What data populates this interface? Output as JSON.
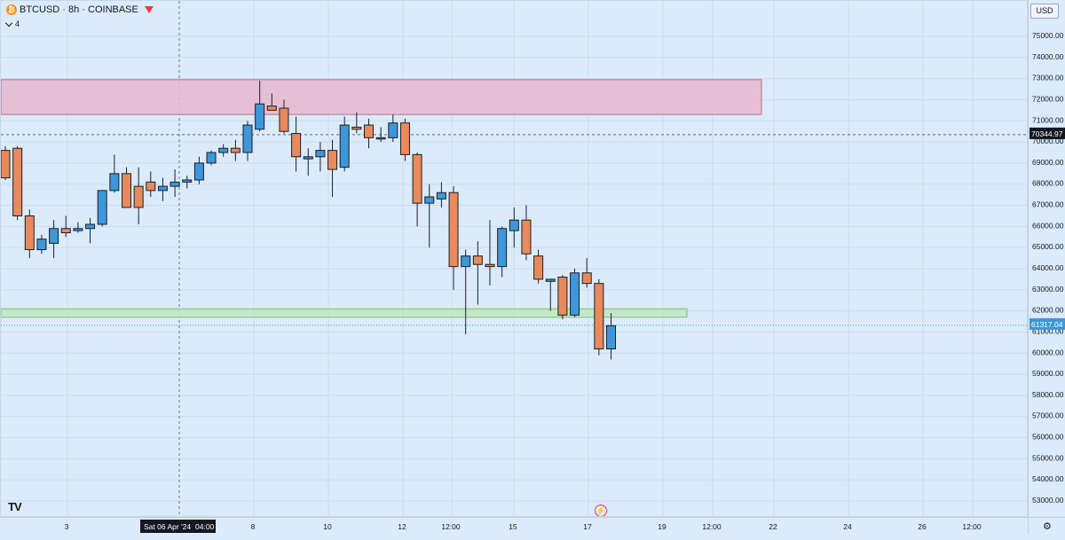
{
  "legend": {
    "title": "BTCUSD · 8h · COINBASE",
    "sub_count": "4"
  },
  "currency": "USD",
  "colors": {
    "up": "#3d97d8",
    "down": "#e98a5c",
    "wick": "#1b1e28",
    "resistance_zone": "#e8b7cc",
    "support_zone": "#bfe7bf",
    "grid": "#c9dbef"
  },
  "chart_data": {
    "type": "candlestick",
    "symbol": "BTCUSD",
    "interval": "8h",
    "exchange": "COINBASE",
    "ylim": [
      52500,
      75500
    ],
    "y_ticks": [
      "75000.00",
      "74000.00",
      "73000.00",
      "72000.00",
      "71000.00",
      "70000.00",
      "69000.00",
      "68000.00",
      "67000.00",
      "66000.00",
      "65000.00",
      "64000.00",
      "63000.00",
      "62000.00",
      "61000.00",
      "60000.00",
      "59000.00",
      "58000.00",
      "57000.00",
      "56000.00",
      "55000.00",
      "54000.00",
      "53000.00"
    ],
    "x_ticks": [
      "3",
      "Sat 06 Apr '24",
      "04:00",
      "8",
      "10",
      "12",
      "12:00",
      "15",
      "17",
      "19",
      "12:00",
      "22",
      "24",
      "26",
      "12:00"
    ],
    "price_labels": {
      "last_price": "70344.97",
      "current_price": "61317.04"
    },
    "candles": [
      [
        69600,
        69800,
        68200,
        68300
      ],
      [
        69700,
        69800,
        66300,
        66500
      ],
      [
        66500,
        66800,
        64500,
        64900
      ],
      [
        64900,
        65600,
        64700,
        65400
      ],
      [
        65200,
        66300,
        64500,
        65900
      ],
      [
        65900,
        66500,
        65500,
        65700
      ],
      [
        65800,
        66200,
        65700,
        65900
      ],
      [
        65900,
        66400,
        65200,
        66100
      ],
      [
        66100,
        67500,
        66000,
        67700
      ],
      [
        67700,
        69400,
        67600,
        68500
      ],
      [
        68500,
        68800,
        67000,
        66900
      ],
      [
        67900,
        68800,
        66100,
        66900
      ],
      [
        68100,
        68600,
        67400,
        67700
      ],
      [
        67700,
        68300,
        67200,
        67900
      ],
      [
        67900,
        68700,
        67400,
        68100
      ],
      [
        68100,
        68400,
        67800,
        68200
      ],
      [
        68200,
        69300,
        68000,
        69000
      ],
      [
        69000,
        69600,
        68900,
        69500
      ],
      [
        69500,
        69900,
        69300,
        69700
      ],
      [
        69700,
        70100,
        69100,
        69500
      ],
      [
        69500,
        71000,
        69100,
        70800
      ],
      [
        70600,
        72900,
        70500,
        71800
      ],
      [
        71700,
        72300,
        71500,
        71500
      ],
      [
        71600,
        72000,
        70400,
        70500
      ],
      [
        70400,
        71200,
        68600,
        69300
      ],
      [
        69200,
        69700,
        68400,
        69300
      ],
      [
        69300,
        70000,
        68600,
        69600
      ],
      [
        69600,
        70100,
        67400,
        68700
      ],
      [
        68800,
        71200,
        68600,
        70800
      ],
      [
        70700,
        71400,
        70400,
        70600
      ],
      [
        70800,
        71100,
        69700,
        70200
      ],
      [
        70200,
        70700,
        70000,
        70200
      ],
      [
        70200,
        71300,
        70000,
        70900
      ],
      [
        70900,
        71100,
        69100,
        69400
      ],
      [
        69400,
        69500,
        66000,
        67100
      ],
      [
        67100,
        68000,
        65000,
        67400
      ],
      [
        67300,
        68100,
        66900,
        67600
      ],
      [
        67600,
        67900,
        63000,
        64100
      ],
      [
        64100,
        64900,
        60900,
        64600
      ],
      [
        64600,
        65300,
        62300,
        64200
      ],
      [
        64200,
        66300,
        63200,
        64100
      ],
      [
        64100,
        66000,
        63600,
        65900
      ],
      [
        65800,
        66900,
        65000,
        66300
      ],
      [
        66300,
        67000,
        64400,
        64700
      ],
      [
        64600,
        64900,
        63300,
        63500
      ],
      [
        63400,
        63500,
        62000,
        63500
      ],
      [
        63600,
        63700,
        61600,
        61800
      ],
      [
        61800,
        64000,
        61700,
        63800
      ],
      [
        63800,
        64500,
        63100,
        63300
      ],
      [
        63300,
        63500,
        59900,
        60200
      ],
      [
        60200,
        61900,
        59700,
        61300
      ]
    ],
    "zones": [
      {
        "name": "resistance",
        "low": 71300,
        "high": 72950
      },
      {
        "name": "support",
        "low": 61700,
        "high": 62100
      }
    ]
  }
}
